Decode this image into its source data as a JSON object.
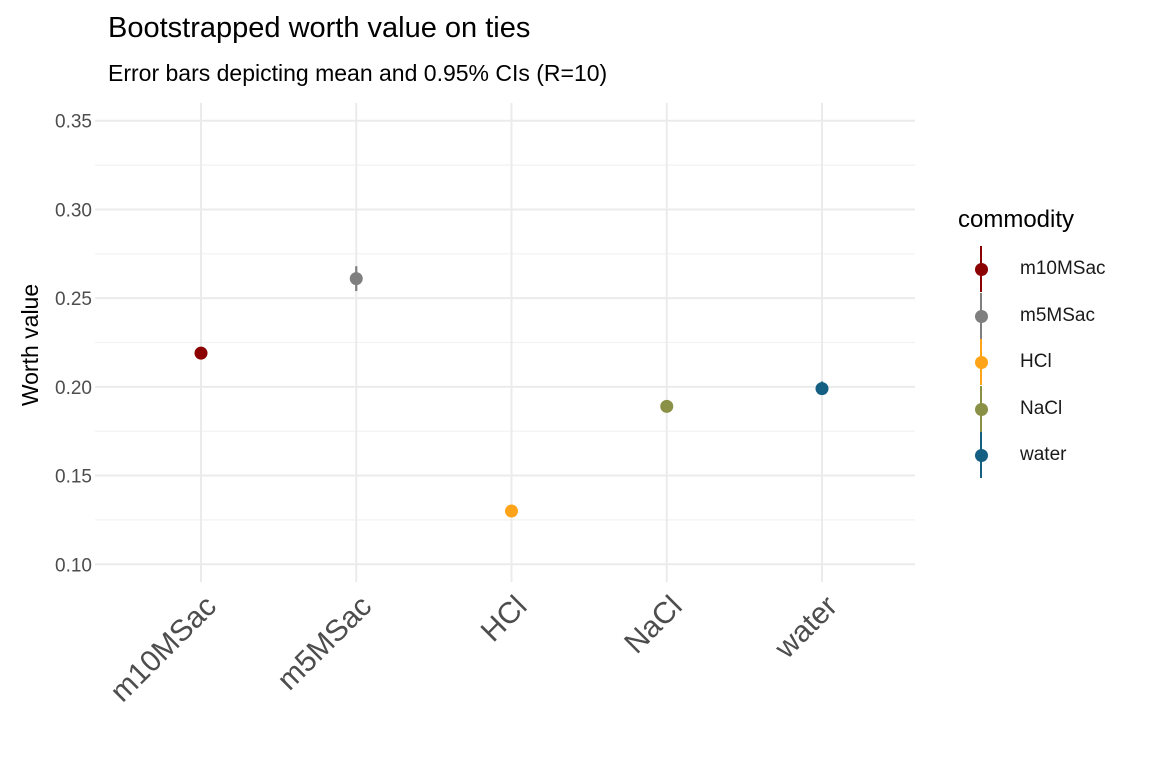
{
  "chart_data": {
    "type": "scatter",
    "title": "Bootstrapped worth value on ties",
    "subtitle": "Error bars depicting mean and 0.95% CIs (R=10)",
    "xlabel": "",
    "ylabel": "Worth value",
    "categories": [
      "m10MSac",
      "m5MSac",
      "HCl",
      "NaCl",
      "water"
    ],
    "values": [
      0.219,
      0.261,
      0.13,
      0.189,
      0.199
    ],
    "ci_lower": [
      0.217,
      0.254,
      0.129,
      0.187,
      0.196
    ],
    "ci_upper": [
      0.221,
      0.268,
      0.131,
      0.191,
      0.203
    ],
    "colors": [
      "#8B0000",
      "#7F7F7F",
      "#FFA319",
      "#8A9045",
      "#155F83"
    ],
    "ylim": [
      0.09,
      0.36
    ],
    "yticks": [
      "0.10",
      "0.15",
      "0.20",
      "0.25",
      "0.30",
      "0.35"
    ],
    "grid": true,
    "legend": {
      "title": "commodity",
      "placement": "right",
      "items": [
        "m10MSac",
        "m5MSac",
        "HCl",
        "NaCl",
        "water"
      ]
    }
  }
}
